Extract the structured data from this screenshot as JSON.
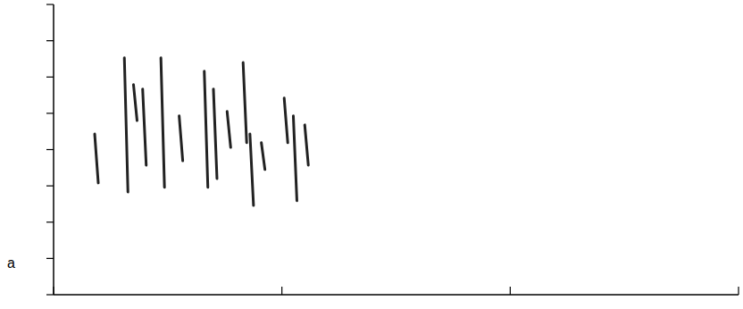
{
  "chart_data": {
    "type": "spectrogram",
    "title": "a",
    "x": [
      0.18,
      0.31,
      0.35,
      0.39,
      0.47,
      0.55,
      0.66,
      0.7,
      0.76,
      0.83,
      0.86,
      0.91,
      1.01,
      1.05,
      1.1
    ],
    "values": [
      4.43,
      6.53,
      5.79,
      5.67,
      6.53,
      4.93,
      6.16,
      5.67,
      5.05,
      6.4,
      4.43,
      4.19,
      5.42,
      4.93,
      4.68
    ],
    "low": [
      3.08,
      2.83,
      4.8,
      3.57,
      2.96,
      3.69,
      2.96,
      3.2,
      4.06,
      4.19,
      2.46,
      3.45,
      4.19,
      2.59,
      3.57
    ],
    "color": "#222222",
    "xlim": [
      0,
      3
    ],
    "xticks": [
      0,
      1,
      2,
      3
    ],
    "ylim": [
      0,
      8
    ],
    "yticks": [
      0,
      1,
      2,
      3,
      4,
      5,
      6,
      7,
      8
    ],
    "tick_labels": false
  }
}
